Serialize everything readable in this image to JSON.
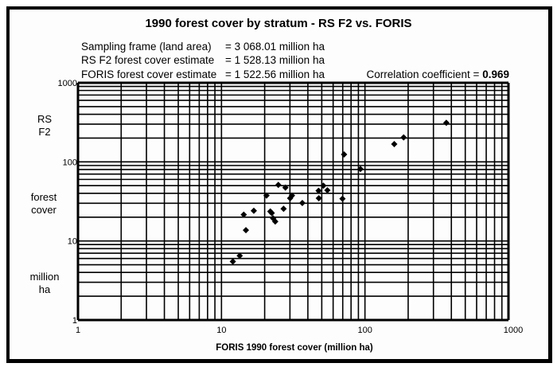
{
  "title": "1990 forest cover by stratum  -  RS F2  vs.  FORIS",
  "info": [
    {
      "label": "Sampling frame (land area)",
      "value": "= 3 068.01  million ha"
    },
    {
      "label": "RS F2 forest cover estimate",
      "value": "= 1 528.13  million ha"
    },
    {
      "label": "FORIS forest cover estimate",
      "value": "= 1 522.56  million ha"
    }
  ],
  "correlation": {
    "label": "Correlation coefficient = ",
    "value": "0.969"
  },
  "y_axis_label": {
    "line1": "RS",
    "line2": "F2",
    "line3": "forest",
    "line4": "cover",
    "line5": "million",
    "line6": "ha"
  },
  "x_axis_label": "FORIS  1990 forest cover   (million ha)",
  "chart_data": {
    "type": "scatter",
    "title": "1990 forest cover by stratum - RS F2 vs. FORIS",
    "xlabel": "FORIS 1990 forest cover (million ha)",
    "ylabel": "RS F2 forest cover million ha",
    "xscale": "log",
    "yscale": "log",
    "xlim": [
      1,
      1000
    ],
    "ylim": [
      1,
      1000
    ],
    "xticks": [
      "1",
      "10",
      "100",
      "1000"
    ],
    "yticks": [
      "1",
      "10",
      "100",
      "1000"
    ],
    "grid": true,
    "annotations": [
      "Sampling frame (land area) = 3 068.01 million ha",
      "RS F2 forest cover estimate = 1 528.13 million ha",
      "FORIS forest cover estimate = 1 522.56 million ha",
      "Correlation coefficient = 0.969"
    ],
    "series": [
      {
        "name": "strata",
        "marker": "diamond",
        "points": [
          [
            12.0,
            5.5
          ],
          [
            13.4,
            6.5
          ],
          [
            14.8,
            13.7
          ],
          [
            14.3,
            21.5
          ],
          [
            16.8,
            24.1
          ],
          [
            20.6,
            37.5
          ],
          [
            21.9,
            23.6
          ],
          [
            22.4,
            22.5
          ],
          [
            22.9,
            19.3
          ],
          [
            23.7,
            17.6
          ],
          [
            24.9,
            51.2
          ],
          [
            27.1,
            25.5
          ],
          [
            27.9,
            47.3
          ],
          [
            30.1,
            34.7
          ],
          [
            31.0,
            37.5
          ],
          [
            36.6,
            30.2
          ],
          [
            47.5,
            43.1
          ],
          [
            47.7,
            34.7
          ],
          [
            51.3,
            50.0
          ],
          [
            54.7,
            43.8
          ],
          [
            69.7,
            34.2
          ],
          [
            71.5,
            124
          ],
          [
            93.0,
            81.3
          ],
          [
            160,
            168
          ],
          [
            186,
            204
          ],
          [
            369,
            312
          ]
        ]
      }
    ]
  }
}
